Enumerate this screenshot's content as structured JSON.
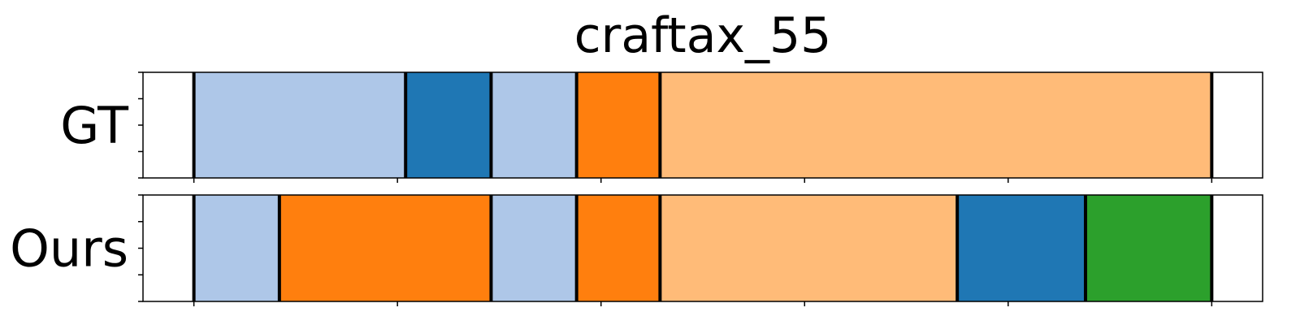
{
  "chart_data": {
    "type": "segmentation_timeline",
    "title": "craftax_55",
    "xlim": [
      -25,
      525
    ],
    "major_ticks": [
      0,
      100,
      200,
      300,
      400,
      500
    ],
    "y_minor_ticks": 5,
    "grid": false,
    "legend": "none",
    "series": [
      {
        "name": "GT",
        "segments": [
          {
            "start": 0,
            "end": 104,
            "color": "#aec7e8"
          },
          {
            "start": 104,
            "end": 146,
            "color": "#1f77b4"
          },
          {
            "start": 146,
            "end": 188,
            "color": "#aec7e8"
          },
          {
            "start": 188,
            "end": 229,
            "color": "#ff7f0e"
          },
          {
            "start": 229,
            "end": 500,
            "color": "#ffbb78"
          }
        ]
      },
      {
        "name": "Ours",
        "segments": [
          {
            "start": 0,
            "end": 42,
            "color": "#aec7e8"
          },
          {
            "start": 42,
            "end": 146,
            "color": "#ff7f0e"
          },
          {
            "start": 146,
            "end": 188,
            "color": "#aec7e8"
          },
          {
            "start": 188,
            "end": 229,
            "color": "#ff7f0e"
          },
          {
            "start": 229,
            "end": 375,
            "color": "#ffbb78"
          },
          {
            "start": 375,
            "end": 438,
            "color": "#1f77b4"
          },
          {
            "start": 438,
            "end": 500,
            "color": "#2ca02c"
          }
        ]
      }
    ]
  }
}
